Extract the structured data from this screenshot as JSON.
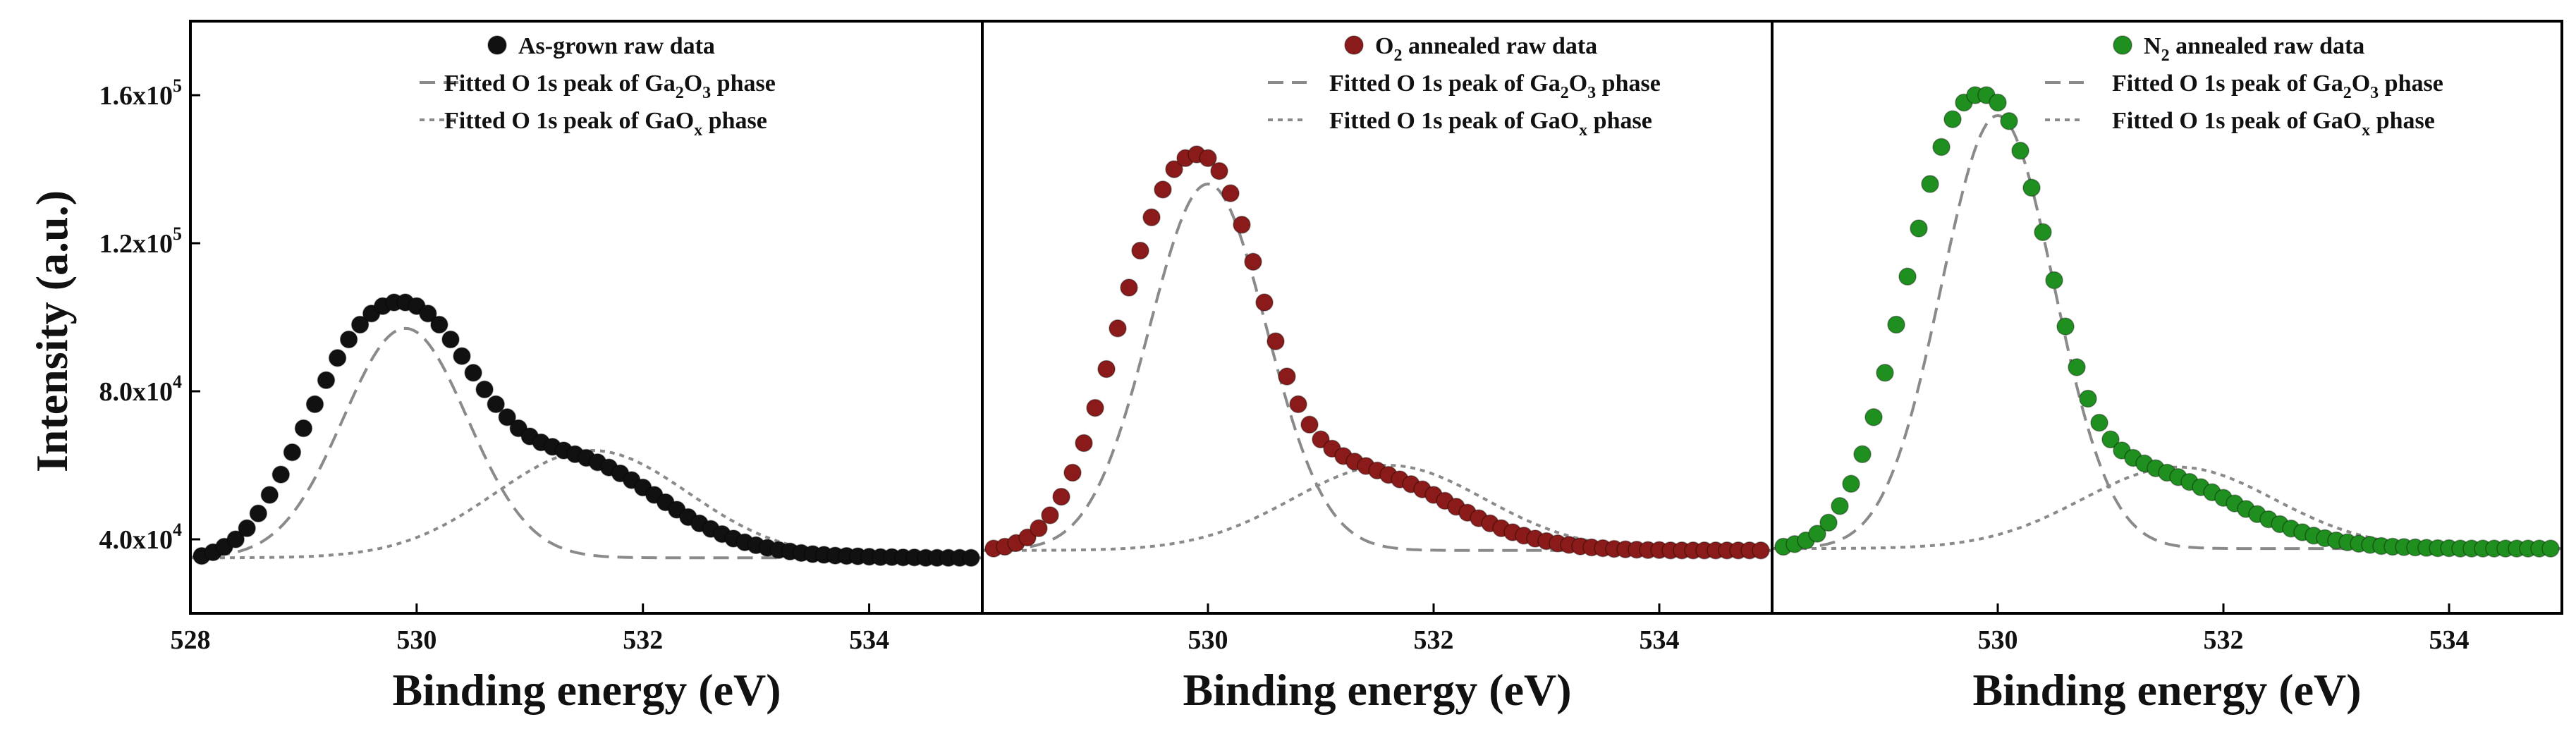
{
  "chart_data": [
    {
      "type": "scatter",
      "panel": "as-grown",
      "xlabel": "Binding energy (eV)",
      "ylabel": "Intensity (a.u.)",
      "xlim": [
        528,
        535
      ],
      "ylim": [
        20000,
        180000
      ],
      "x_ticks": [
        "528",
        "530",
        "532",
        "534"
      ],
      "y_ticks": [
        {
          "base": "4.0x10",
          "exp": "4"
        },
        {
          "base": "8.0x10",
          "exp": "4"
        },
        {
          "base": "1.2x10",
          "exp": "5"
        },
        {
          "base": "1.6x10",
          "exp": "5"
        }
      ],
      "legend": [
        {
          "label": "As-grown raw data"
        },
        {
          "label": "Fitted O 1s peak of Ga",
          "sub1": "2",
          "mid": "O",
          "sub2": "3",
          "tail": " phase"
        },
        {
          "label": "Fitted O 1s peak of GaO",
          "sub1": "x",
          "tail": " phase"
        }
      ],
      "raw_color": "#111111",
      "model": {
        "baseline": 35000,
        "peak1": {
          "center": 529.9,
          "amp": 62000,
          "sigma": 0.55
        },
        "peak2": {
          "center": 531.55,
          "amp": 29000,
          "sigma": 0.85
        }
      },
      "x": [
        528.0,
        528.1,
        528.2,
        528.3,
        528.4,
        528.5,
        528.6,
        528.7,
        528.8,
        528.9,
        529.0,
        529.1,
        529.2,
        529.3,
        529.4,
        529.5,
        529.6,
        529.7,
        529.8,
        529.9,
        530.0,
        530.1,
        530.2,
        530.3,
        530.4,
        530.5,
        530.6,
        530.7,
        530.8,
        530.9,
        531.0,
        531.1,
        531.2,
        531.3,
        531.4,
        531.5,
        531.6,
        531.7,
        531.8,
        531.9,
        532.0,
        532.1,
        532.2,
        532.3,
        532.4,
        532.5,
        532.6,
        532.7,
        532.8,
        532.9,
        533.0,
        533.1,
        533.2,
        533.3,
        533.4,
        533.5,
        533.6,
        533.7,
        533.8,
        533.9,
        534.0,
        534.1,
        534.2,
        534.3,
        534.4,
        534.5,
        534.6,
        534.7,
        534.8,
        534.9,
        535.0
      ],
      "raw_intensity": [
        34500,
        35500,
        36500,
        38000,
        40000,
        43000,
        47000,
        52000,
        57500,
        63500,
        70000,
        76500,
        83000,
        89000,
        94000,
        98000,
        101000,
        103000,
        104000,
        104000,
        103000,
        101000,
        98000,
        94000,
        89500,
        85000,
        80500,
        76500,
        73000,
        70000,
        67800,
        66200,
        65000,
        64000,
        63000,
        62000,
        60800,
        59400,
        57800,
        56000,
        54000,
        52000,
        50000,
        48000,
        46000,
        44300,
        42800,
        41400,
        40200,
        39200,
        38400,
        37700,
        37100,
        36700,
        36300,
        36000,
        35800,
        35600,
        35500,
        35400,
        35300,
        35200,
        35200,
        35100,
        35100,
        35000,
        35000,
        35000,
        35000,
        35000,
        35000
      ]
    },
    {
      "type": "scatter",
      "panel": "O2-annealed",
      "xlabel": "Binding energy (eV)",
      "xlim": [
        528,
        535
      ],
      "ylim": [
        20000,
        180000
      ],
      "x_ticks": [
        "530",
        "532",
        "534"
      ],
      "legend": [
        {
          "label": "O",
          "sub1": "2",
          "tail": " annealed raw data"
        },
        {
          "label": "Fitted O 1s peak of Ga",
          "sub1": "2",
          "mid": "O",
          "sub2": "3",
          "tail": " phase"
        },
        {
          "label": "Fitted O 1s peak of GaO",
          "sub1": "x",
          "tail": " phase"
        }
      ],
      "raw_color": "#8b1a1a",
      "model": {
        "baseline": 37000,
        "peak1": {
          "center": 530.0,
          "amp": 99000,
          "sigma": 0.52
        },
        "peak2": {
          "center": 531.6,
          "amp": 23000,
          "sigma": 0.85
        }
      },
      "x": [
        528.0,
        528.1,
        528.2,
        528.3,
        528.4,
        528.5,
        528.6,
        528.7,
        528.8,
        528.9,
        529.0,
        529.1,
        529.2,
        529.3,
        529.4,
        529.5,
        529.6,
        529.7,
        529.8,
        529.9,
        530.0,
        530.1,
        530.2,
        530.3,
        530.4,
        530.5,
        530.6,
        530.7,
        530.8,
        530.9,
        531.0,
        531.1,
        531.2,
        531.3,
        531.4,
        531.5,
        531.6,
        531.7,
        531.8,
        531.9,
        532.0,
        532.1,
        532.2,
        532.3,
        532.4,
        532.5,
        532.6,
        532.7,
        532.8,
        532.9,
        533.0,
        533.1,
        533.2,
        533.3,
        533.4,
        533.5,
        533.6,
        533.7,
        533.8,
        533.9,
        534.0,
        534.1,
        534.2,
        534.3,
        534.4,
        534.5,
        534.6,
        534.7,
        534.8,
        534.9,
        535.0
      ],
      "raw_intensity": [
        37000,
        37500,
        38000,
        39000,
        40500,
        43000,
        46500,
        51500,
        58000,
        66000,
        75500,
        86000,
        97000,
        108000,
        118000,
        127000,
        134500,
        140000,
        143000,
        144000,
        143000,
        139500,
        133500,
        125000,
        115000,
        104000,
        93500,
        84000,
        76500,
        71000,
        67000,
        64500,
        62500,
        61000,
        59800,
        58600,
        57400,
        56200,
        54900,
        53500,
        52000,
        50400,
        48800,
        47200,
        45700,
        44300,
        43000,
        41900,
        41000,
        40200,
        39500,
        38900,
        38500,
        38100,
        37800,
        37600,
        37400,
        37300,
        37200,
        37100,
        37100,
        37000,
        37000,
        37000,
        37000,
        37000,
        37000,
        37000,
        37000,
        37000,
        37000
      ]
    },
    {
      "type": "scatter",
      "panel": "N2-annealed",
      "xlabel": "Binding energy (eV)",
      "xlim": [
        528,
        535
      ],
      "ylim": [
        20000,
        180000
      ],
      "x_ticks": [
        "530",
        "532",
        "534"
      ],
      "legend": [
        {
          "label": "N",
          "sub1": "2",
          "tail": " annealed raw data"
        },
        {
          "label": "Fitted O 1s peak of Ga",
          "sub1": "2",
          "mid": "O",
          "sub2": "3",
          "tail": " phase"
        },
        {
          "label": "Fitted O 1s peak of GaO",
          "sub1": "x",
          "tail": " phase"
        }
      ],
      "raw_color": "#1f8f1f",
      "model": {
        "baseline": 37500,
        "peak1": {
          "center": 530.0,
          "amp": 117000,
          "sigma": 0.5
        },
        "peak2": {
          "center": 531.6,
          "amp": 22000,
          "sigma": 0.85
        }
      },
      "x": [
        528.0,
        528.1,
        528.2,
        528.3,
        528.4,
        528.5,
        528.6,
        528.7,
        528.8,
        528.9,
        529.0,
        529.1,
        529.2,
        529.3,
        529.4,
        529.5,
        529.6,
        529.7,
        529.8,
        529.9,
        530.0,
        530.1,
        530.2,
        530.3,
        530.4,
        530.5,
        530.6,
        530.7,
        530.8,
        530.9,
        531.0,
        531.1,
        531.2,
        531.3,
        531.4,
        531.5,
        531.6,
        531.7,
        531.8,
        531.9,
        532.0,
        532.1,
        532.2,
        532.3,
        532.4,
        532.5,
        532.6,
        532.7,
        532.8,
        532.9,
        533.0,
        533.1,
        533.2,
        533.3,
        533.4,
        533.5,
        533.6,
        533.7,
        533.8,
        533.9,
        534.0,
        534.1,
        534.2,
        534.3,
        534.4,
        534.5,
        534.6,
        534.7,
        534.8,
        534.9,
        535.0
      ],
      "raw_intensity": [
        37500,
        38000,
        38700,
        39700,
        41500,
        44500,
        49000,
        55000,
        63000,
        73000,
        85000,
        98000,
        111000,
        124000,
        136000,
        146000,
        153500,
        158000,
        160000,
        160000,
        158000,
        153000,
        145000,
        135000,
        123000,
        110000,
        97500,
        86500,
        78000,
        71500,
        67000,
        64000,
        62000,
        60500,
        59200,
        58000,
        56800,
        55500,
        54100,
        52700,
        51200,
        49700,
        48200,
        46800,
        45400,
        44100,
        42900,
        41900,
        41000,
        40300,
        39700,
        39200,
        38800,
        38500,
        38200,
        38000,
        37900,
        37800,
        37700,
        37600,
        37600,
        37500,
        37500,
        37500,
        37500,
        37500,
        37500,
        37500,
        37500,
        37500,
        37500
      ]
    }
  ]
}
